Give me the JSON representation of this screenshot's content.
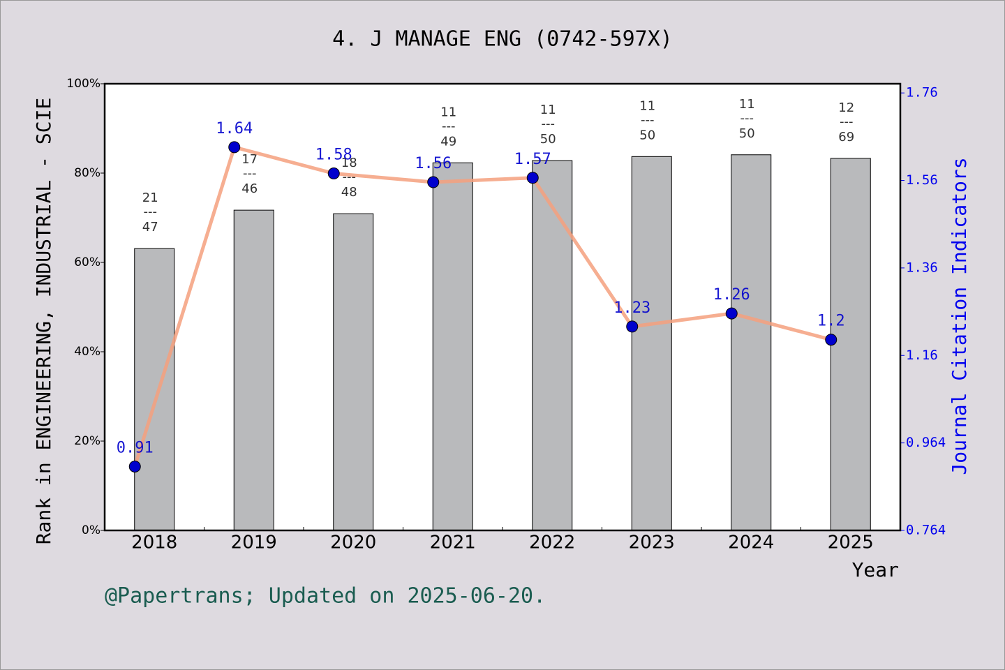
{
  "chart_data": {
    "type": "combo",
    "title": "4. J MANAGE ENG (0742-597X)",
    "ylabel": "Rank in ENGINEERING, INDUSTRIAL - SCIE",
    "y2label": "Journal Citation Indicators",
    "xlabel": "Year",
    "footer": "@Papertrans; Updated on 2025-06-20.",
    "categories": [
      "2018",
      "2019",
      "2020",
      "2021",
      "2022",
      "2023",
      "2024",
      "2025"
    ],
    "series": [
      {
        "type": "bar",
        "color": "#b9babc",
        "values": [
          63.1,
          71.7,
          70.9,
          82.3,
          82.8,
          83.7,
          84.1,
          83.3
        ]
      },
      {
        "type": "line",
        "axis": "y2",
        "color": "#f4a07e",
        "marker_color": "#0000cd",
        "values": [
          0.91,
          1.64,
          1.58,
          1.56,
          1.57,
          1.23,
          1.26,
          1.2
        ]
      }
    ],
    "rank_labels": {
      "ranks": [
        21,
        17,
        18,
        11,
        11,
        11,
        11,
        12
      ],
      "totals": [
        47,
        46,
        48,
        49,
        50,
        50,
        50,
        69
      ],
      "separator": "---"
    },
    "ylim": [
      0,
      100
    ],
    "yticks": [
      {
        "value": 0,
        "label": "0%"
      },
      {
        "value": 20,
        "label": "20%"
      },
      {
        "value": 40,
        "label": "40%"
      },
      {
        "value": 60,
        "label": "60%"
      },
      {
        "value": 80,
        "label": "80%"
      },
      {
        "value": 100,
        "label": "100%"
      }
    ],
    "y2lim": [
      0.764,
      1.785
    ],
    "y2ticks": [
      0.764,
      0.964,
      {
        "value": 1.164,
        "label": "1.16"
      },
      {
        "value": 1.364,
        "label": "1.36"
      },
      {
        "value": 1.564,
        "label": "1.56"
      },
      {
        "value": 1.764,
        "label": "1.76"
      }
    ]
  }
}
